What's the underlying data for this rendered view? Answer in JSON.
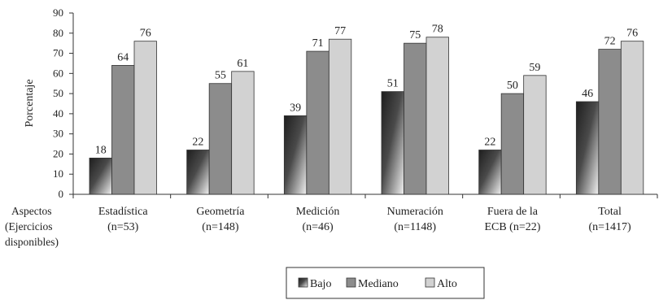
{
  "chart_data": {
    "type": "bar",
    "title": "",
    "xlabel": "",
    "ylabel": "Porcentaje",
    "ylim": [
      0,
      90
    ],
    "yticks": [
      0,
      10,
      20,
      30,
      40,
      50,
      60,
      70,
      80,
      90
    ],
    "grid": false,
    "legend_position": "bottom-center",
    "category_axis_title": [
      "Aspectos",
      "(Ejercicios",
      "disponibles)"
    ],
    "categories": [
      [
        "Estadística",
        "(n=53)"
      ],
      [
        "Geometría",
        "(n=148)"
      ],
      [
        "Medición",
        "(n=46)"
      ],
      [
        "Numeración",
        "(n=1148)"
      ],
      [
        "Fuera de la",
        "ECB (n=22)"
      ],
      [
        "Total",
        "(n=1417)"
      ]
    ],
    "series": [
      {
        "name": "Bajo",
        "values": [
          18,
          22,
          39,
          51,
          22,
          46
        ],
        "color": "#3a3a3a",
        "style": "gradient"
      },
      {
        "name": "Mediano",
        "values": [
          64,
          55,
          71,
          75,
          50,
          72
        ],
        "color": "#8c8c8c"
      },
      {
        "name": "Alto",
        "values": [
          76,
          61,
          77,
          78,
          59,
          76
        ],
        "color": "#d2d2d2"
      }
    ]
  }
}
